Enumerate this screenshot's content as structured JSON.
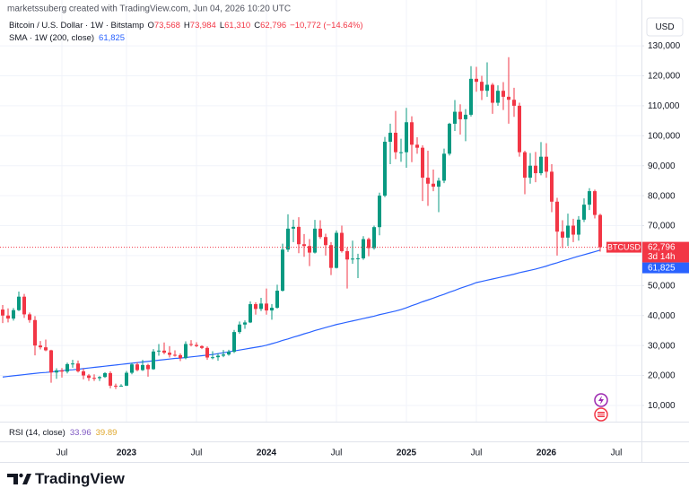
{
  "header": {
    "credit": "marketssuberg created with TradingView.com, Jun 04, 2026 10:20 UTC"
  },
  "footer": {
    "brand": "TradingView"
  },
  "chart_data": {
    "type": "candlestick",
    "title": "Bitcoin / U.S. Dollar · 1W · Bitstamp",
    "ohlc_legend": [
      {
        "key": "O",
        "text": "73,568"
      },
      {
        "key": "H",
        "text": "73,984"
      },
      {
        "key": "L",
        "text": "61,310"
      },
      {
        "key": "C",
        "text": "62,796"
      }
    ],
    "change": "−10,772 (−14.64%)",
    "currency": "USD",
    "symbol": "BTCUSD",
    "last_price_label": "62,796",
    "countdown": "3d 14h",
    "up_color": "#089981",
    "down_color": "#f23645",
    "grid": true,
    "ylim": [
      4600,
      140800
    ],
    "yticks": [
      {
        "value": 10000,
        "label": "10,000"
      },
      {
        "value": 20000,
        "label": "20,000"
      },
      {
        "value": 30000,
        "label": "30,000"
      },
      {
        "value": 40000,
        "label": "40,000"
      },
      {
        "value": 50000,
        "label": "50,000"
      },
      {
        "value": 60000,
        "label": "60,000"
      },
      {
        "value": 70000,
        "label": "70,000"
      },
      {
        "value": 80000,
        "label": "80,000"
      },
      {
        "value": 90000,
        "label": "90,000"
      },
      {
        "value": 100000,
        "label": "100,000"
      },
      {
        "value": 110000,
        "label": "110,000"
      },
      {
        "value": 120000,
        "label": "120,000"
      },
      {
        "value": 130000,
        "label": "130,000"
      }
    ],
    "categories": [
      null,
      null,
      null,
      null,
      null,
      null,
      null,
      null,
      null,
      null,
      null,
      "Jul",
      null,
      null,
      null,
      null,
      null,
      null,
      null,
      null,
      null,
      null,
      null,
      "2023",
      null,
      null,
      null,
      null,
      null,
      null,
      null,
      null,
      null,
      null,
      null,
      null,
      "Jul",
      null,
      null,
      null,
      null,
      null,
      null,
      null,
      null,
      null,
      null,
      null,
      null,
      "2024",
      null,
      null,
      null,
      null,
      null,
      null,
      null,
      null,
      null,
      null,
      null,
      null,
      "Jul",
      null,
      null,
      null,
      null,
      null,
      null,
      null,
      null,
      null,
      null,
      null,
      null,
      "2025",
      null,
      null,
      null,
      null,
      null,
      null,
      null,
      null,
      null,
      null,
      null,
      null,
      "Jul",
      null,
      null,
      null,
      null,
      null,
      null,
      null,
      null,
      null,
      null,
      null,
      null,
      "2026",
      null,
      null,
      null,
      null,
      null,
      null,
      null,
      null,
      null,
      null,
      null,
      null,
      "Jul"
    ],
    "open": [
      42000,
      40000,
      39000,
      41800,
      46300,
      40400,
      38500,
      30000,
      29400,
      28400,
      21000,
      21700,
      21300,
      23800,
      24000,
      21400,
      20000,
      19200,
      19100,
      19500,
      20800,
      16600,
      16500,
      16600,
      20900,
      23700,
      21800,
      23500,
      22100,
      28000,
      28300,
      27600,
      26900,
      26800,
      25800,
      30500,
      30200,
      29800,
      29200,
      26000,
      26100,
      26600,
      27000,
      27900,
      34500,
      37000,
      37700,
      43800,
      42200,
      44000,
      41700,
      42600,
      48300,
      62000,
      69000,
      69600,
      63800,
      63200,
      61000,
      69000,
      66200,
      63500,
      55900,
      67600,
      61500,
      58700,
      59000,
      59100,
      65500,
      62500,
      69500,
      80000,
      98000,
      101000,
      94500,
      94500,
      104500,
      97000,
      96000,
      86000,
      84000,
      83000,
      85000,
      94000,
      104000,
      108000,
      105500,
      107000,
      119000,
      118000,
      115000,
      117000,
      111000,
      115000,
      113000,
      112000,
      110000,
      94500,
      86000,
      90000,
      87500,
      93000,
      88000,
      78000,
      68000,
      66000,
      70000,
      67000,
      72000,
      77000,
      81500,
      73568,
      null,
      null,
      null
    ],
    "high": [
      43500,
      42400,
      42500,
      48000,
      47200,
      41000,
      39800,
      31500,
      32000,
      28600,
      22400,
      22500,
      24300,
      25200,
      25000,
      22300,
      20500,
      20400,
      19800,
      21100,
      21400,
      17300,
      17100,
      21500,
      24200,
      24400,
      25200,
      23900,
      28800,
      30500,
      31000,
      29800,
      28400,
      27400,
      31400,
      31800,
      31100,
      30100,
      29700,
      28100,
      27400,
      28500,
      28600,
      35200,
      38000,
      38400,
      44700,
      44400,
      45900,
      49000,
      43800,
      50300,
      64000,
      73800,
      72000,
      72800,
      67200,
      65500,
      71900,
      71800,
      67300,
      64500,
      68400,
      70000,
      62700,
      65000,
      60600,
      66500,
      66000,
      70000,
      81000,
      99600,
      104000,
      108300,
      99000,
      109300,
      106500,
      99500,
      96800,
      95000,
      88700,
      86000,
      95700,
      104300,
      111900,
      110500,
      108900,
      123200,
      123000,
      120000,
      124500,
      117600,
      116800,
      117900,
      126200,
      116000,
      111000,
      95000,
      94200,
      94600,
      97900,
      97500,
      90500,
      79300,
      71800,
      74000,
      72300,
      73200,
      79100,
      82500,
      82000,
      73984,
      null,
      null,
      null
    ],
    "low": [
      37500,
      37700,
      38300,
      41500,
      39200,
      37600,
      26700,
      28700,
      28100,
      17600,
      18900,
      19300,
      20700,
      22600,
      21000,
      18700,
      18200,
      18200,
      18200,
      19200,
      15700,
      15500,
      16300,
      16500,
      20400,
      21400,
      21500,
      19600,
      21900,
      26600,
      27100,
      26000,
      26300,
      24800,
      25400,
      29700,
      29500,
      28800,
      25200,
      25400,
      24900,
      26100,
      26600,
      27500,
      33900,
      35600,
      37500,
      40300,
      41500,
      40300,
      38600,
      42300,
      48000,
      61200,
      64500,
      60800,
      59600,
      56500,
      60700,
      65600,
      60000,
      53500,
      55700,
      61000,
      49000,
      57300,
      52500,
      58600,
      59800,
      62000,
      66800,
      79500,
      90500,
      92200,
      91300,
      89300,
      91200,
      94000,
      78200,
      76600,
      81500,
      74500,
      84200,
      93400,
      101600,
      100400,
      98200,
      106400,
      114700,
      111900,
      113000,
      107300,
      110000,
      108600,
      104000,
      106300,
      93000,
      80500,
      84000,
      84500,
      86800,
      86000,
      74500,
      60000,
      62500,
      63200,
      64500,
      65000,
      71200,
      75200,
      72400,
      61310,
      null,
      null,
      null
    ],
    "close": [
      40000,
      39000,
      41800,
      46300,
      40400,
      38500,
      30000,
      29400,
      28400,
      21000,
      21700,
      21300,
      23800,
      24000,
      21400,
      20000,
      19200,
      19100,
      19500,
      20800,
      16600,
      16500,
      16600,
      20900,
      23700,
      21800,
      23500,
      22100,
      28000,
      28300,
      27600,
      26900,
      26800,
      25800,
      30500,
      30200,
      29800,
      29200,
      26000,
      26100,
      26600,
      27000,
      27900,
      34500,
      37000,
      37700,
      43800,
      42200,
      44000,
      41700,
      42600,
      48300,
      62000,
      69000,
      69600,
      63800,
      63200,
      61000,
      69000,
      66200,
      63500,
      55900,
      67600,
      61500,
      58700,
      59000,
      59100,
      65500,
      62500,
      69500,
      80000,
      98000,
      101000,
      94500,
      94500,
      104500,
      97000,
      96000,
      86000,
      84000,
      83000,
      85000,
      94000,
      104000,
      108000,
      105500,
      107000,
      119000,
      118000,
      115000,
      117000,
      111000,
      115000,
      113000,
      112000,
      110000,
      94500,
      86000,
      90000,
      87500,
      93000,
      88000,
      78000,
      68000,
      66000,
      70000,
      67000,
      72000,
      77000,
      81500,
      73568,
      62796,
      null,
      null,
      null
    ],
    "series": [
      {
        "name": "SMA · 1W (200, close)",
        "color": "#2962ff",
        "value_label": "61,825",
        "values": [
          19500,
          19700,
          19900,
          20100,
          20300,
          20500,
          20700,
          20900,
          21000,
          21200,
          21400,
          21600,
          21800,
          21900,
          22100,
          22300,
          22500,
          22700,
          22900,
          23100,
          23300,
          23500,
          23700,
          23900,
          24100,
          24300,
          24500,
          24700,
          24900,
          25100,
          25300,
          25500,
          25700,
          25800,
          26000,
          26200,
          26400,
          26600,
          26800,
          27000,
          27300,
          27600,
          27900,
          28200,
          28500,
          28800,
          29100,
          29400,
          29700,
          30100,
          30600,
          31100,
          31700,
          32200,
          32800,
          33300,
          33900,
          34400,
          35000,
          35500,
          36000,
          36500,
          37000,
          37400,
          37800,
          38200,
          38600,
          39000,
          39400,
          39800,
          40300,
          40700,
          41100,
          41500,
          42000,
          42600,
          43300,
          43900,
          44600,
          45200,
          45800,
          46500,
          47100,
          47800,
          48400,
          49100,
          49700,
          50300,
          51000,
          51400,
          51800,
          52200,
          52600,
          53000,
          53400,
          53800,
          54300,
          54700,
          55100,
          55500,
          56000,
          56500,
          57100,
          57600,
          58200,
          58700,
          59300,
          59800,
          60300,
          60800,
          61300,
          61825,
          null,
          null,
          null
        ]
      }
    ],
    "rsi_legend": {
      "name": "RSI (14, close)",
      "labels": [
        {
          "text": "33.96",
          "color": "#7e57c2"
        },
        {
          "text": "39.89",
          "color": "#e0a82e"
        }
      ]
    }
  }
}
